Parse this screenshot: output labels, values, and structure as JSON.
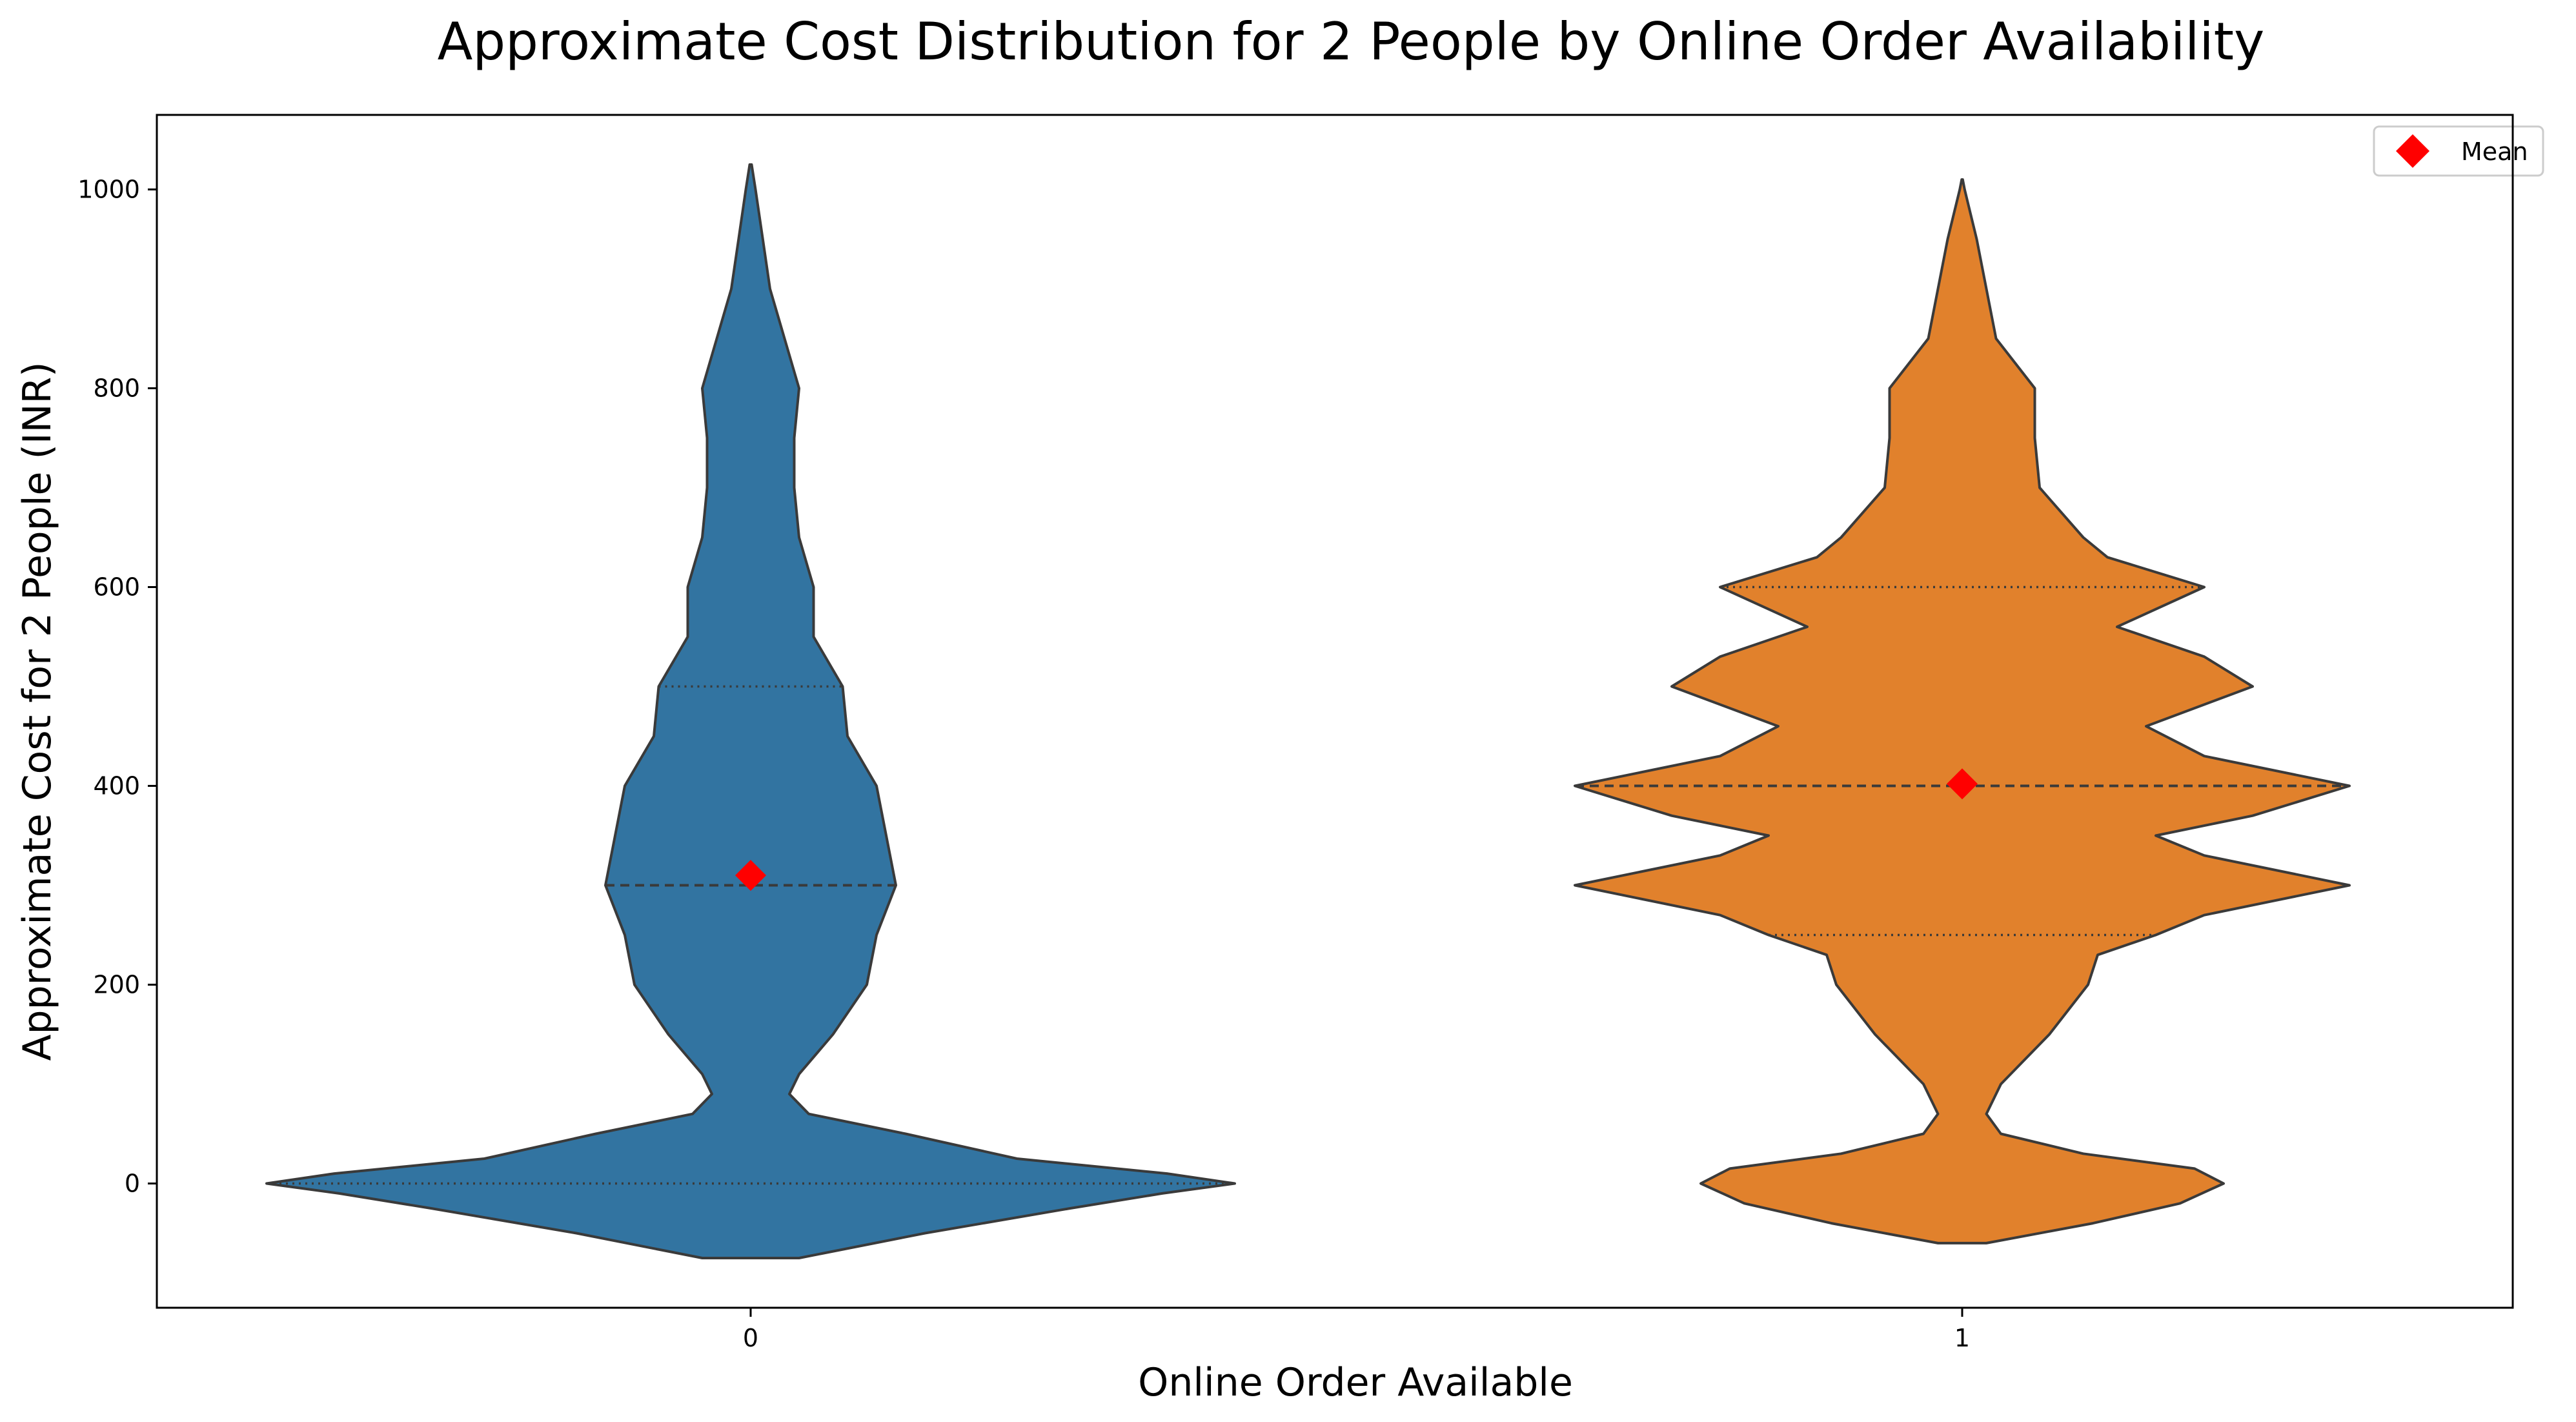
{
  "chart_data": {
    "type": "violin",
    "title": "Approximate Cost Distribution for 2 People by Online Order Availability",
    "xlabel": "Online Order Available",
    "ylabel": "Approximate Cost for 2 People (INR)",
    "categories": [
      "0",
      "1"
    ],
    "ylim": [
      -125,
      1075
    ],
    "yticks": [
      0,
      200,
      400,
      600,
      800,
      1000
    ],
    "legend": {
      "label": "Mean",
      "position": "upper right",
      "marker": "diamond",
      "color": "#ff0000"
    },
    "series": [
      {
        "category": "0",
        "color": "#3274a1",
        "mean": 310,
        "quartiles": {
          "q1": 0,
          "median": 300,
          "q3": 500
        },
        "min_extent": -75,
        "max_extent": 1025,
        "profile": [
          [
            -75,
            0.1
          ],
          [
            -50,
            0.36
          ],
          [
            -25,
            0.66
          ],
          [
            -10,
            0.85
          ],
          [
            0,
            1.0
          ],
          [
            10,
            0.86
          ],
          [
            25,
            0.55
          ],
          [
            50,
            0.32
          ],
          [
            70,
            0.12
          ],
          [
            90,
            0.08
          ],
          [
            110,
            0.1
          ],
          [
            150,
            0.17
          ],
          [
            200,
            0.24
          ],
          [
            250,
            0.26
          ],
          [
            300,
            0.3
          ],
          [
            350,
            0.28
          ],
          [
            400,
            0.26
          ],
          [
            450,
            0.2
          ],
          [
            500,
            0.19
          ],
          [
            550,
            0.13
          ],
          [
            600,
            0.13
          ],
          [
            650,
            0.1
          ],
          [
            700,
            0.09
          ],
          [
            750,
            0.09
          ],
          [
            800,
            0.1
          ],
          [
            850,
            0.07
          ],
          [
            900,
            0.04
          ],
          [
            950,
            0.025
          ],
          [
            1000,
            0.01
          ],
          [
            1025,
            0.002
          ]
        ]
      },
      {
        "category": "1",
        "color": "#e1812c",
        "mean": 402,
        "quartiles": {
          "q1": 250,
          "median": 400,
          "q3": 600
        },
        "min_extent": -60,
        "max_extent": 1010,
        "profile": [
          [
            -60,
            0.05
          ],
          [
            -40,
            0.27
          ],
          [
            -20,
            0.45
          ],
          [
            0,
            0.54
          ],
          [
            15,
            0.48
          ],
          [
            30,
            0.25
          ],
          [
            50,
            0.08
          ],
          [
            70,
            0.05
          ],
          [
            100,
            0.08
          ],
          [
            150,
            0.18
          ],
          [
            200,
            0.26
          ],
          [
            230,
            0.28
          ],
          [
            250,
            0.4
          ],
          [
            270,
            0.5
          ],
          [
            300,
            0.8
          ],
          [
            330,
            0.5
          ],
          [
            350,
            0.4
          ],
          [
            370,
            0.6
          ],
          [
            400,
            0.8
          ],
          [
            430,
            0.5
          ],
          [
            460,
            0.38
          ],
          [
            500,
            0.6
          ],
          [
            530,
            0.5
          ],
          [
            560,
            0.32
          ],
          [
            600,
            0.5
          ],
          [
            630,
            0.3
          ],
          [
            650,
            0.25
          ],
          [
            700,
            0.16
          ],
          [
            750,
            0.15
          ],
          [
            800,
            0.15
          ],
          [
            850,
            0.07
          ],
          [
            900,
            0.05
          ],
          [
            950,
            0.03
          ],
          [
            1000,
            0.005
          ],
          [
            1010,
            0.001
          ]
        ]
      }
    ]
  }
}
